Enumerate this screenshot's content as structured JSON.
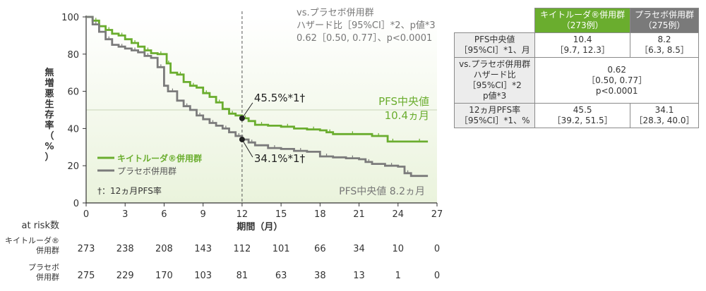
{
  "chart_data": {
    "type": "line",
    "title": "",
    "ylabel": "無増悪生存率（%）",
    "xlabel": "期間（月）",
    "xlim": [
      0,
      27
    ],
    "ylim": [
      0,
      100
    ],
    "x_ticks": [
      0,
      3,
      6,
      9,
      12,
      15,
      18,
      21,
      24,
      27
    ],
    "y_ticks": [
      0,
      20,
      40,
      60,
      80,
      100
    ],
    "legend_placement": "bottom-left",
    "colors": {
      "keytruda": "#6aad2e",
      "placebo": "#7b7b7b"
    },
    "series": [
      {
        "name": "キイトルーダ®併用群",
        "x": [
          0,
          0.5,
          1,
          1.5,
          2,
          2.5,
          3,
          3.5,
          4,
          4.5,
          5,
          5.5,
          6,
          6.2,
          6.5,
          7,
          7.5,
          8,
          8.5,
          9,
          9.5,
          10,
          10.5,
          11,
          11.5,
          12,
          12.5,
          13,
          14,
          15,
          16,
          17,
          18,
          18.5,
          19,
          20,
          21,
          22,
          23,
          23.2,
          24,
          25,
          26.3
        ],
        "y": [
          100,
          98,
          95,
          93,
          91,
          90,
          88,
          86,
          84,
          82,
          80.5,
          80,
          80,
          75,
          70,
          69,
          65,
          63,
          62,
          59,
          57,
          54,
          50.5,
          48,
          47,
          45.5,
          44,
          42,
          41.5,
          41,
          40,
          39.5,
          39,
          38,
          37,
          37,
          37,
          36,
          36,
          33,
          33,
          33,
          33
        ]
      },
      {
        "name": "プラセボ併用群",
        "x": [
          0,
          0.5,
          1,
          1.5,
          2,
          2.5,
          3,
          3.5,
          4,
          4.5,
          5,
          5.5,
          6,
          6.3,
          7,
          7.5,
          8,
          8.5,
          9,
          9.5,
          10,
          10.5,
          11,
          11.5,
          12,
          12.5,
          13,
          14,
          15,
          16,
          17,
          18,
          19,
          20,
          21,
          21.5,
          22,
          23,
          24,
          24.5,
          25,
          26.3
        ],
        "y": [
          100,
          96,
          92,
          88,
          85,
          84,
          83,
          82,
          81,
          79,
          78,
          73,
          63,
          60,
          55,
          52,
          50,
          47,
          45,
          43,
          41.5,
          40,
          38,
          36,
          34.1,
          32.5,
          31,
          29.5,
          29,
          28,
          27.5,
          25,
          24.5,
          24,
          23.5,
          22,
          21,
          20,
          19.5,
          16,
          14.5,
          14.5
        ]
      }
    ],
    "reference_line": {
      "x": 12
    },
    "median_line": {
      "y": 50
    },
    "annotations": {
      "hr_line1": "vs.プラセボ併用群",
      "hr_line2": "ハザード比［95%CI］*2、p値*3",
      "hr_line3": "0.62［0.50, 0.77］、p<0.0001",
      "point_keytruda": "45.5%*1†",
      "point_placebo": "34.1%*1†",
      "median_keytruda_label": "PFS中央値",
      "median_keytruda_value": "10.4ヵ月",
      "median_placebo": "PFS中央値 8.2ヵ月",
      "footnote": "†：12ヵ月PFS率"
    },
    "at_risk": {
      "header": "at risk数",
      "rows": [
        {
          "label": "キイトルーダ®併用群",
          "values": [
            273,
            238,
            208,
            143,
            112,
            101,
            66,
            34,
            10,
            0
          ]
        },
        {
          "label": "プラセボ併用群",
          "values": [
            275,
            229,
            170,
            103,
            81,
            63,
            38,
            13,
            1,
            0
          ]
        }
      ]
    }
  },
  "table": {
    "header_keytruda": "キイトルーダ®併用群",
    "header_keytruda_n": "（273例）",
    "header_placebo": "プラセボ併用群",
    "header_placebo_n": "（275例）",
    "rows": [
      {
        "label1": "PFS中央値",
        "label2": "［95%CI］*1、月",
        "k1": "10.4",
        "k2": "［9.7, 12.3］",
        "p1": "8.2",
        "p2": "［6.3, 8.5］"
      },
      {
        "label1": "vs.プラセボ併用群",
        "label2": "ハザード比",
        "label3": "［95%CI］*2",
        "label4": "p値*3",
        "v1": "0.62",
        "v2": "［0.50, 0.77］",
        "v3": "p<0.0001"
      },
      {
        "label1": "12ヵ月PFS率",
        "label2": "［95%CI］*1、%",
        "k1": "45.5",
        "k2": "［39.2, 51.5］",
        "p1": "34.1",
        "p2": "［28.3, 40.0］"
      }
    ]
  }
}
